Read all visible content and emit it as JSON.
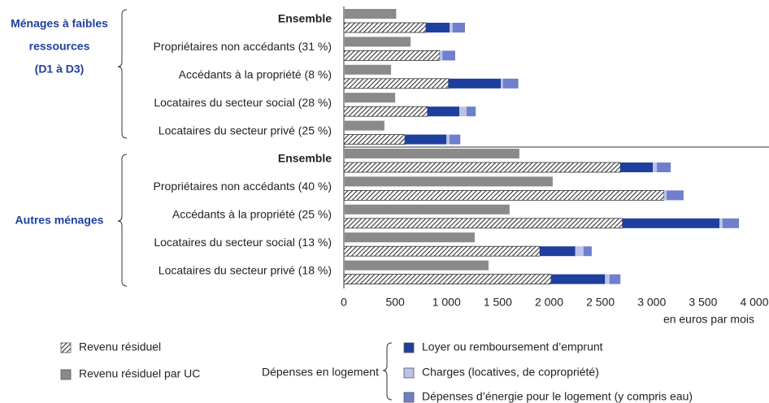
{
  "chart_data": {
    "type": "bar",
    "orientation": "horizontal",
    "groups": [
      {
        "label": [
          "Ménages à faibles",
          "ressources",
          "(D1 à D3)"
        ],
        "categories": [
          "Ensemble",
          "Propriétaires non accédants (31 %)",
          "Accédants à la propriété (8 %)",
          "Locataires du secteur social (28 %)",
          "Locataires du secteur privé (25 %)"
        ]
      },
      {
        "label": [
          "Autres ménages"
        ],
        "categories": [
          "Ensemble",
          "Propriétaires non accédants (40 %)",
          "Accédants à la propriété (25 %)",
          "Locataires du secteur social (13 %)",
          "Locataires du secteur privé (18 %)"
        ]
      }
    ],
    "series": [
      {
        "name": "Revenu résiduel par UC",
        "color": "#8a8a8a",
        "values": [
          510,
          650,
          460,
          500,
          395,
          1710,
          2035,
          1615,
          1275,
          1410
        ]
      },
      {
        "name": "Revenu résiduel",
        "color": "#333333",
        "pattern": "hatch",
        "values": [
          800,
          935,
          1020,
          815,
          595,
          2695,
          3120,
          2715,
          1910,
          2020
        ]
      },
      {
        "name": "Loyer ou remboursement d’emprunt",
        "color": "#1f3f9e",
        "values": [
          230,
          0,
          510,
          310,
          405,
          315,
          0,
          945,
          345,
          525
        ]
      },
      {
        "name": "Charges (locatives, de copropriété)",
        "color": "#b9c3e8",
        "values": [
          30,
          25,
          20,
          70,
          30,
          40,
          25,
          30,
          80,
          45
        ]
      },
      {
        "name": "Dépenses d’énergie pour le logement (y compris eau)",
        "color": "#6f7fcc",
        "values": [
          120,
          125,
          150,
          90,
          105,
          135,
          165,
          160,
          80,
          105
        ]
      }
    ],
    "legend_group_label": "Dépenses en logement",
    "xlabel": "en euros par mois",
    "xlim": [
      0,
      4000
    ],
    "xticks": [
      0,
      500,
      {
        "value": 1000,
        "label": "1 000"
      },
      {
        "value": 1500,
        "label": "1 500"
      },
      {
        "value": 2000,
        "label": "2 000"
      },
      {
        "value": 2500,
        "label": "2 500"
      },
      {
        "value": 3000,
        "label": "3 000"
      },
      {
        "value": 3500,
        "label": "3 500"
      },
      {
        "value": 4000,
        "label": "4 000"
      }
    ],
    "grid": false
  }
}
